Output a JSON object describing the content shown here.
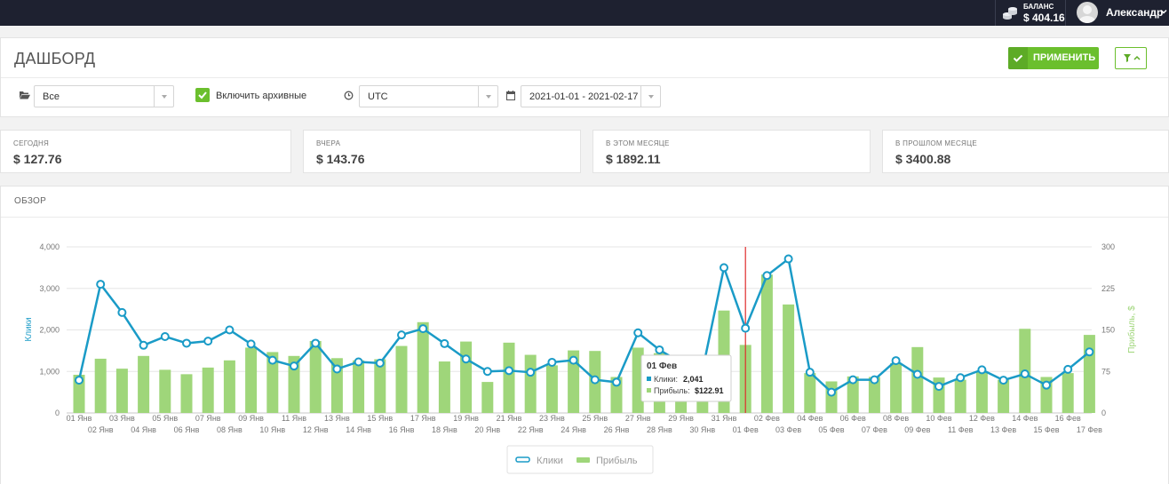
{
  "topbar": {
    "balance_label": "БАЛАНС",
    "balance_value": "$ 404.16",
    "user_name": "Александр"
  },
  "header": {
    "title": "ДАШБОРД",
    "apply_label": "ПРИМЕНИТЬ"
  },
  "filters": {
    "folder_value": "Все",
    "archive_label": "Включить архивные",
    "archive_checked": true,
    "timezone_value": "UTC",
    "date_range_value": "2021-01-01 - 2021-02-17"
  },
  "stats": [
    {
      "label": "СЕГОДНЯ",
      "value": "$ 127.76"
    },
    {
      "label": "ВЧЕРА",
      "value": "$ 143.76"
    },
    {
      "label": "В ЭТОМ МЕСЯЦЕ",
      "value": "$ 1892.11"
    },
    {
      "label": "В ПРОШЛОМ МЕСЯЦЕ",
      "value": "$ 3400.88"
    }
  ],
  "overview": {
    "title": "ОБЗОР",
    "tooltip": {
      "date": "01 Фев",
      "clicks_label": "Клики:",
      "clicks_value": "2,041",
      "profit_label": "Прибыль:",
      "profit_value": "$122.91"
    }
  },
  "colors": {
    "clicks": "#1a9bc7",
    "profit": "#9fd67a",
    "accent": "#6bbf2d",
    "marker": "#e02b2b"
  },
  "chart_data": {
    "type": "bar+line",
    "categories": [
      "01 Янв",
      "02 Янв",
      "03 Янв",
      "04 Янв",
      "05 Янв",
      "06 Янв",
      "07 Янв",
      "08 Янв",
      "09 Янв",
      "10 Янв",
      "11 Янв",
      "12 Янв",
      "13 Янв",
      "14 Янв",
      "15 Янв",
      "16 Янв",
      "17 Янв",
      "18 Янв",
      "19 Янв",
      "20 Янв",
      "21 Янв",
      "22 Янв",
      "23 Янв",
      "24 Янв",
      "25 Янв",
      "26 Янв",
      "27 Янв",
      "28 Янв",
      "29 Янв",
      "30 Янв",
      "31 Янв",
      "01 Фев",
      "02 Фев",
      "03 Фев",
      "04 Фев",
      "05 Фев",
      "06 Фев",
      "07 Фев",
      "08 Фев",
      "09 Фев",
      "10 Фев",
      "11 Фев",
      "12 Фев",
      "13 Фев",
      "14 Фев",
      "15 Фев",
      "16 Фев",
      "17 Фев"
    ],
    "series": [
      {
        "name": "Клики",
        "type": "line",
        "axis": "left",
        "values": [
          790,
          3100,
          2420,
          1630,
          1840,
          1680,
          1730,
          2000,
          1660,
          1270,
          1130,
          1680,
          1060,
          1230,
          1200,
          1880,
          2030,
          1670,
          1300,
          1000,
          1020,
          980,
          1220,
          1270,
          800,
          740,
          1930,
          1520,
          1210,
          1020,
          3500,
          2041,
          3310,
          3710,
          980,
          500,
          800,
          800,
          1260,
          930,
          640,
          850,
          1040,
          790,
          940,
          670,
          1050,
          1470
        ]
      },
      {
        "name": "Прибыль",
        "type": "bar",
        "axis": "right",
        "values": [
          69,
          98,
          80,
          103,
          78,
          70,
          82,
          95,
          118,
          110,
          103,
          130,
          99,
          95,
          97,
          121,
          164,
          93,
          129,
          56,
          127,
          105,
          86,
          113,
          112,
          65,
          118,
          108,
          90,
          60,
          185,
          122.91,
          250,
          196,
          72,
          57,
          66,
          65,
          90,
          119,
          64,
          60,
          74,
          60,
          152,
          65,
          72,
          141
        ]
      }
    ],
    "ylabel_left": "Клики",
    "ylabel_right": "Прибыль, $",
    "ylim_left": [
      0,
      4000
    ],
    "ylim_right": [
      0,
      300
    ],
    "yticks_left": [
      "0",
      "1,000",
      "2,000",
      "3,000",
      "4,000"
    ],
    "yticks_right": [
      "0",
      "75",
      "150",
      "225",
      "300"
    ],
    "grid": true,
    "legend": "bottom-center",
    "highlight_category": "01 Фев"
  }
}
